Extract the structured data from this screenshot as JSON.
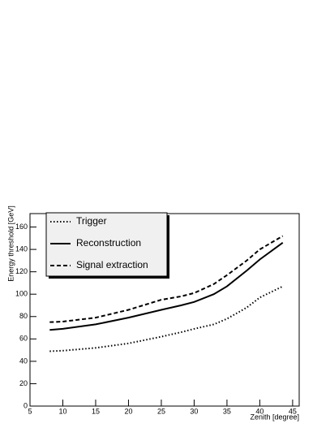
{
  "chart_data": {
    "type": "line",
    "x_label": "Zenith [degree]",
    "y_label": "Energy threshold [GeV]",
    "x": [
      8,
      10,
      15,
      20,
      25,
      28,
      30,
      33,
      35,
      38,
      40,
      43.5
    ],
    "series": [
      {
        "name": "Trigger",
        "color": "#000000",
        "line_style": "dotted",
        "values": [
          49,
          49.5,
          52,
          56,
          62,
          66,
          69,
          73,
          78,
          88,
          97,
          107
        ]
      },
      {
        "name": "Reconstruction",
        "color": "#000000",
        "line_style": "solid",
        "values": [
          68,
          69,
          73,
          79,
          86,
          90,
          93,
          100,
          107,
          121,
          131,
          146
        ]
      },
      {
        "name": "Signal extraction",
        "color": "#000000",
        "line_style": "dashed",
        "values": [
          75,
          75.5,
          79,
          86,
          95,
          98,
          101,
          109,
          117,
          130,
          140,
          152
        ]
      }
    ],
    "xlim": [
      5,
      46
    ],
    "ylim": [
      0,
      172
    ],
    "xticks": [
      5,
      10,
      15,
      20,
      25,
      30,
      35,
      40,
      45
    ],
    "yticks": [
      0,
      20,
      40,
      60,
      80,
      100,
      120,
      140,
      160
    ],
    "legend": "top-left"
  }
}
